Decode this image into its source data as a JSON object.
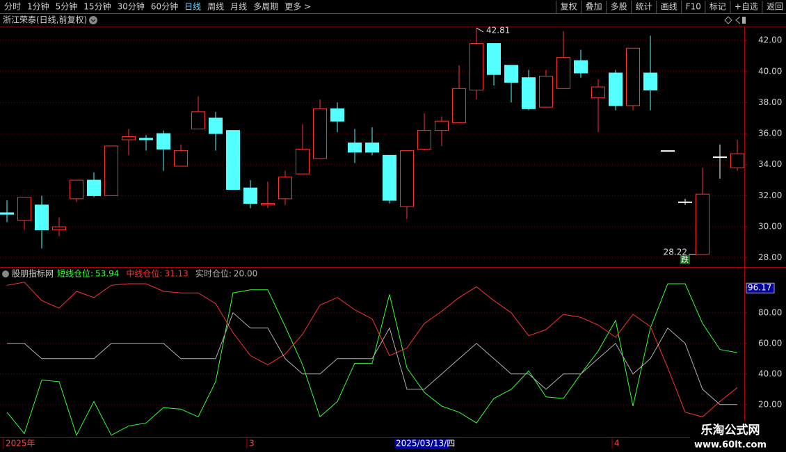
{
  "toolbar": {
    "left": [
      "分时",
      "1分钟",
      "5分钟",
      "15分钟",
      "30分钟",
      "60分钟",
      "日线",
      "周线",
      "月线",
      "多周期",
      "更多 >"
    ],
    "active": "日线",
    "right": [
      "复权",
      "叠加",
      "多股",
      "统计",
      "画线",
      "F10",
      "标记",
      "+自选",
      "返回"
    ]
  },
  "title": "浙江荣泰(日线,前复权)",
  "indicator_title": "股朋指标网",
  "cursor_date": "2025/03/13/四",
  "badge": "跌",
  "watermark": {
    "name": "乐淘公式网",
    "url": "www.60lt.com"
  },
  "chart_data": [
    {
      "type": "candlestick",
      "open": [
        30.9,
        30.4,
        31.4,
        29.8,
        31.8,
        33.0,
        32.0,
        35.6,
        35.7,
        36.0,
        33.9,
        36.3,
        37.0,
        36.2,
        32.5,
        31.4,
        31.8,
        33.4,
        34.4,
        37.6,
        35.4,
        35.4,
        34.6,
        31.3,
        35.0,
        36.2,
        36.7,
        38.8,
        41.8,
        40.4,
        39.6,
        37.7,
        38.9,
        40.7,
        38.3,
        39.9,
        37.8,
        39.9,
        34.9,
        31.6,
        28.22,
        34.5,
        33.8
      ],
      "close": [
        30.8,
        31.9,
        29.8,
        30.0,
        33.0,
        32.0,
        35.2,
        35.8,
        35.6,
        35.0,
        34.9,
        37.4,
        36.0,
        32.4,
        31.5,
        31.5,
        33.2,
        35.0,
        37.6,
        36.8,
        34.8,
        34.8,
        31.7,
        34.9,
        36.2,
        36.8,
        38.9,
        41.8,
        39.8,
        39.3,
        37.6,
        39.7,
        40.9,
        39.9,
        39.0,
        37.8,
        41.5,
        38.8,
        34.9,
        31.6,
        32.1,
        34.5,
        34.7
      ],
      "high": [
        31.7,
        31.9,
        32.0,
        30.6,
        33.0,
        33.5,
        35.2,
        36.3,
        35.9,
        36.2,
        35.3,
        38.4,
        37.4,
        36.2,
        33.0,
        32.9,
        33.6,
        36.6,
        38.2,
        38.0,
        36.3,
        36.4,
        34.6,
        34.9,
        37.3,
        37.1,
        40.4,
        42.81,
        41.8,
        40.4,
        40.1,
        40.1,
        42.6,
        41.4,
        39.5,
        40.1,
        41.5,
        42.3,
        34.9,
        31.8,
        33.8,
        35.3,
        35.6
      ],
      "low": [
        30.3,
        29.8,
        28.6,
        29.4,
        31.6,
        31.9,
        32.0,
        34.6,
        34.9,
        33.6,
        33.9,
        36.3,
        34.9,
        32.4,
        31.2,
        31.2,
        31.4,
        33.4,
        34.4,
        36.1,
        34.1,
        34.6,
        31.5,
        30.5,
        34.9,
        35.2,
        36.7,
        38.2,
        39.1,
        38.0,
        37.5,
        37.7,
        38.9,
        39.6,
        36.1,
        37.5,
        37.5,
        37.5,
        34.9,
        31.4,
        28.22,
        33.1,
        33.6
      ],
      "up_color": "#ff3232",
      "down_color": "#54ffff",
      "flat_color": "#ffffff",
      "ylim": [
        27.45,
        42.9
      ],
      "yticks": [
        {
          "value": 28,
          "label": "28.00"
        },
        {
          "value": 30,
          "label": "30.00"
        },
        {
          "value": 32,
          "label": "32.00"
        },
        {
          "value": 34,
          "label": "34.00"
        },
        {
          "value": 36,
          "label": "36.00"
        },
        {
          "value": 38,
          "label": "38.00"
        },
        {
          "value": 40,
          "label": "40.00"
        },
        {
          "value": 42,
          "label": "42.00"
        }
      ],
      "grid": true
    },
    {
      "type": "line",
      "categories": [
        "2025年",
        null,
        null,
        null,
        null,
        null,
        null,
        null,
        null,
        null,
        null,
        null,
        null,
        null,
        "3",
        null,
        null,
        null,
        null,
        null,
        null,
        null,
        null,
        null,
        null,
        null,
        null,
        null,
        null,
        null,
        null,
        null,
        null,
        null,
        null,
        "4",
        null,
        null,
        null,
        null,
        null,
        null,
        null
      ],
      "series": [
        {
          "name": "短线仓位:",
          "value_label": "53.94",
          "color": "#33ff33",
          "values": [
            15,
            1,
            36,
            35,
            0,
            22,
            0,
            6,
            8,
            18,
            17,
            12,
            35,
            93,
            95,
            95,
            71,
            46,
            12,
            22,
            47,
            47,
            92,
            44,
            28,
            19,
            15,
            8,
            24,
            30,
            42,
            25,
            24,
            40,
            55,
            75,
            19,
            70,
            99,
            99,
            73,
            56,
            53.94
          ]
        },
        {
          "name": "中线仓位:",
          "value_label": "31.13",
          "color": "#ff3030",
          "values": [
            98,
            100,
            88,
            83,
            94,
            90,
            98,
            99,
            99,
            94,
            93,
            93,
            86,
            67,
            52,
            46,
            53,
            66,
            85,
            90,
            82,
            76,
            52,
            57,
            73,
            81,
            90,
            97,
            88,
            80,
            65,
            69,
            79,
            77,
            72,
            64,
            79,
            71,
            44,
            15,
            12,
            22,
            31.13
          ]
        },
        {
          "name": "实时仓位:",
          "value_label": "20.00",
          "color": "#b0b0b0",
          "values": [
            60,
            60,
            50,
            50,
            50,
            50,
            60,
            60,
            60,
            60,
            50,
            50,
            50,
            80,
            70,
            70,
            50,
            40,
            40,
            50,
            50,
            50,
            70,
            30,
            30,
            40,
            50,
            60,
            50,
            40,
            40,
            30,
            40,
            40,
            50,
            60,
            40,
            50,
            70,
            60,
            30,
            20,
            20
          ]
        }
      ],
      "ylim": [
        -1,
        109
      ],
      "yticks": [
        {
          "value": 20,
          "label": "20.00"
        },
        {
          "value": 40,
          "label": "40.00"
        },
        {
          "value": 60,
          "label": "60.00"
        },
        {
          "value": 80,
          "label": "80.00"
        }
      ],
      "ymax_marker": {
        "value": 96.17,
        "label": "96.17"
      },
      "grid": true
    }
  ]
}
